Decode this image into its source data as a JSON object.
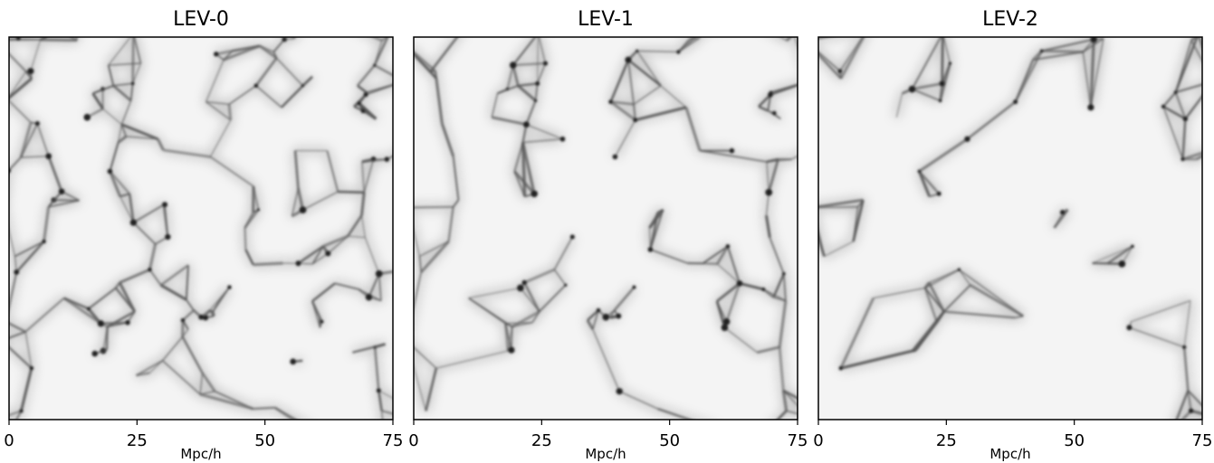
{
  "chart_data": [
    {
      "type": "image",
      "title": "LEV-0",
      "xlabel": "Mpc/h",
      "xlim": [
        0,
        75
      ],
      "xticks": [
        0,
        25,
        50,
        75
      ]
    },
    {
      "type": "image",
      "title": "LEV-1",
      "xlabel": "Mpc/h",
      "xlim": [
        0,
        75
      ],
      "xticks": [
        0,
        25,
        50,
        75
      ]
    },
    {
      "type": "image",
      "title": "LEV-2",
      "xlabel": "Mpc/h",
      "xlim": [
        0,
        75
      ],
      "xticks": [
        0,
        25,
        50,
        75
      ]
    }
  ]
}
